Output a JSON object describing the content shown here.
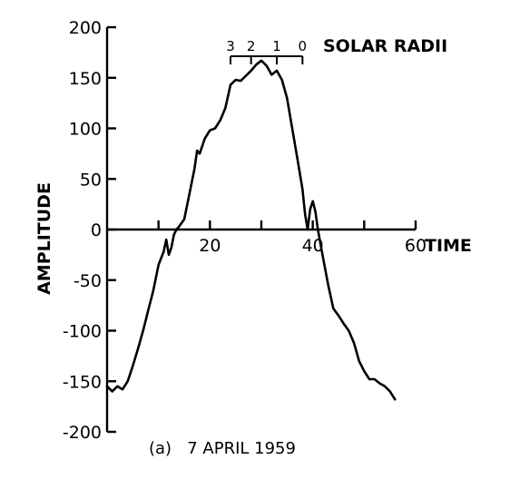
{
  "chart_data": {
    "type": "line",
    "title": "",
    "xlabel": "TIME",
    "ylabel": "AMPLITUDE",
    "caption": "(a)   7 APRIL 1959",
    "xlim": [
      0,
      60
    ],
    "ylim": [
      -200,
      200
    ],
    "x_ticks": [
      0,
      10,
      20,
      30,
      40,
      50,
      60
    ],
    "x_tick_labels": [
      "20",
      "40",
      "60"
    ],
    "x_tick_label_values": [
      20,
      40,
      60
    ],
    "y_ticks": [
      200,
      150,
      100,
      50,
      0,
      -50,
      -100,
      -150,
      -200
    ],
    "y_tick_labels": [
      "200",
      "150",
      "100",
      "50",
      "0",
      "-50",
      "-100",
      "-150",
      "-200"
    ],
    "grid": false,
    "line_color": "#000000",
    "solar_radii": {
      "label": "SOLAR RADII",
      "marks": [
        {
          "label": "3",
          "x": 24
        },
        {
          "label": "2",
          "x": 28
        },
        {
          "label": "1",
          "x": 33
        },
        {
          "label": "0",
          "x": 38
        }
      ]
    },
    "series": [
      {
        "values": [
          [
            0,
            -155
          ],
          [
            1,
            -160
          ],
          [
            2,
            -155
          ],
          [
            3,
            -158
          ],
          [
            4,
            -150
          ],
          [
            5,
            -135
          ],
          [
            6,
            -118
          ],
          [
            7,
            -100
          ],
          [
            8,
            -80
          ],
          [
            9,
            -60
          ],
          [
            10,
            -35
          ],
          [
            11,
            -22
          ],
          [
            11.5,
            -10
          ],
          [
            12,
            -25
          ],
          [
            12.5,
            -18
          ],
          [
            13,
            -5
          ],
          [
            13.5,
            0
          ],
          [
            14,
            3
          ],
          [
            15,
            10
          ],
          [
            16,
            35
          ],
          [
            17,
            60
          ],
          [
            17.5,
            78
          ],
          [
            18,
            75
          ],
          [
            19,
            90
          ],
          [
            20,
            98
          ],
          [
            21,
            100
          ],
          [
            22,
            108
          ],
          [
            23,
            120
          ],
          [
            24,
            143
          ],
          [
            25,
            148
          ],
          [
            26,
            147
          ],
          [
            27,
            152
          ],
          [
            28,
            157
          ],
          [
            29,
            163
          ],
          [
            30,
            167
          ],
          [
            31,
            162
          ],
          [
            32,
            153
          ],
          [
            33,
            157
          ],
          [
            34,
            148
          ],
          [
            35,
            130
          ],
          [
            36,
            100
          ],
          [
            37,
            70
          ],
          [
            38,
            40
          ],
          [
            38.5,
            15
          ],
          [
            39,
            0
          ],
          [
            39.5,
            20
          ],
          [
            40,
            28
          ],
          [
            40.5,
            18
          ],
          [
            41,
            0
          ],
          [
            42,
            -28
          ],
          [
            43,
            -55
          ],
          [
            44,
            -78
          ],
          [
            45,
            -85
          ],
          [
            46,
            -93
          ],
          [
            47,
            -100
          ],
          [
            48,
            -112
          ],
          [
            49,
            -130
          ],
          [
            50,
            -140
          ],
          [
            51,
            -148
          ],
          [
            52,
            -148
          ],
          [
            53,
            -152
          ],
          [
            54,
            -155
          ],
          [
            55,
            -160
          ],
          [
            56,
            -168
          ]
        ]
      }
    ]
  }
}
